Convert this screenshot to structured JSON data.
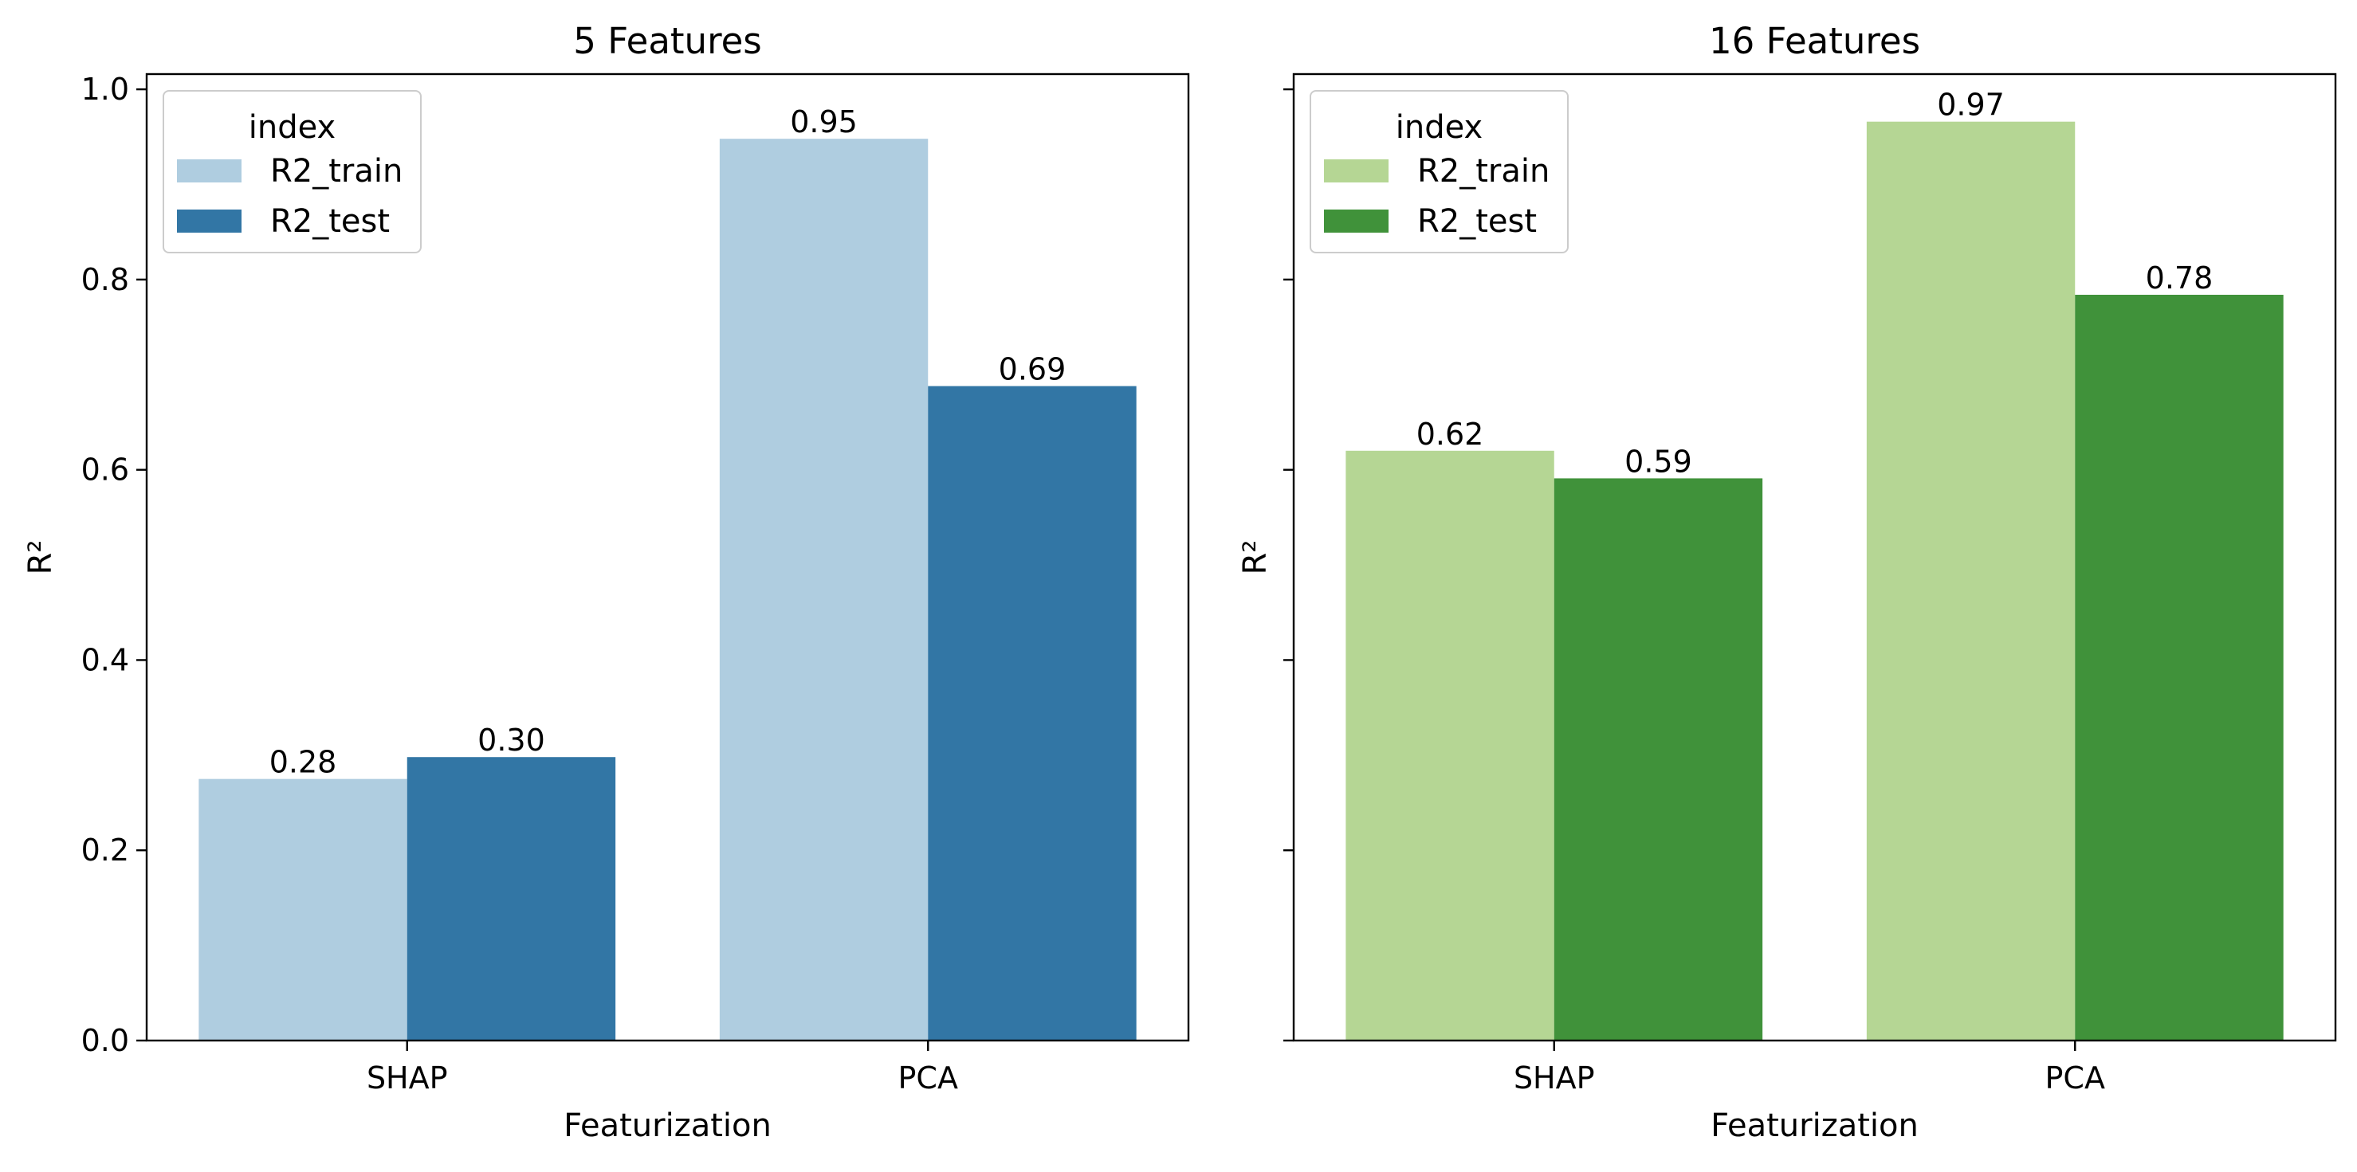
{
  "chart_data": [
    {
      "type": "bar",
      "title": "5 Features",
      "xlabel": "Featurization",
      "ylabel": "R²",
      "ylim": [
        0,
        1.0
      ],
      "yticks": [
        "0.0",
        "0.2",
        "0.4",
        "0.6",
        "0.8",
        "1.0"
      ],
      "categories": [
        "SHAP",
        "PCA"
      ],
      "legend": {
        "title": "index",
        "placement": "upper-left"
      },
      "series": [
        {
          "name": "R2_train",
          "color": "#afcde0",
          "values": [
            0.275,
            0.948
          ],
          "labels": [
            "0.28",
            "0.95"
          ]
        },
        {
          "name": "R2_test",
          "color": "#3276a5",
          "values": [
            0.298,
            0.688
          ],
          "labels": [
            "0.30",
            "0.69"
          ]
        }
      ]
    },
    {
      "type": "bar",
      "title": "16 Features",
      "xlabel": "Featurization",
      "ylabel": "R²",
      "ylim": [
        0,
        1.0
      ],
      "yticks": [
        "0.0",
        "0.2",
        "0.4",
        "0.6",
        "0.8",
        "1.0"
      ],
      "shared_y": true,
      "categories": [
        "SHAP",
        "PCA"
      ],
      "legend": {
        "title": "index",
        "placement": "upper-left"
      },
      "series": [
        {
          "name": "R2_train",
          "color": "#b5d694",
          "values": [
            0.62,
            0.966
          ],
          "labels": [
            "0.62",
            "0.97"
          ]
        },
        {
          "name": "R2_test",
          "color": "#40923a",
          "values": [
            0.591,
            0.784
          ],
          "labels": [
            "0.59",
            "0.78"
          ]
        }
      ]
    }
  ]
}
